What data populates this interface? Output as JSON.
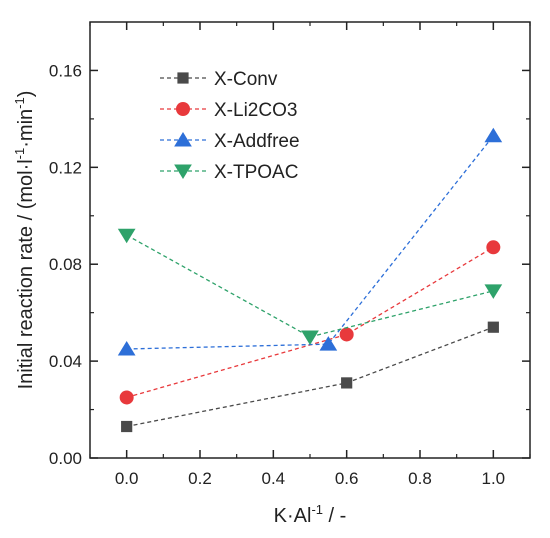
{
  "chart_data": {
    "type": "line",
    "xlabel_parts": [
      "K·Al",
      "-1",
      " / -"
    ],
    "ylabel_parts": [
      "Initial reaction rate / (mol·l",
      "-1",
      "·min",
      "-1",
      ")"
    ],
    "xlim": [
      -0.1,
      1.1
    ],
    "ylim": [
      0,
      0.18
    ],
    "xticks": [
      "0.0",
      "0.2",
      "0.4",
      "0.6",
      "0.8",
      "1.0"
    ],
    "yticks": [
      "0.00",
      "0.04",
      "0.08",
      "0.12",
      "0.16"
    ],
    "legend_position": "top-left",
    "series": [
      {
        "name": "X-Conv",
        "color": "#4a4a4a",
        "marker": "square",
        "x": [
          0.0,
          0.6,
          1.0
        ],
        "y": [
          0.013,
          0.031,
          0.054
        ]
      },
      {
        "name": "X-Li2CO3",
        "color": "#e8393c",
        "marker": "circle",
        "x": [
          0.0,
          0.6,
          1.0
        ],
        "y": [
          0.025,
          0.051,
          0.087
        ]
      },
      {
        "name": "X-Addfree",
        "color": "#2d6fd8",
        "marker": "triangle-up",
        "x": [
          0.0,
          0.55,
          1.0
        ],
        "y": [
          0.045,
          0.047,
          0.133
        ]
      },
      {
        "name": "X-TPOAC",
        "color": "#2ea26a",
        "marker": "triangle-down",
        "x": [
          0.0,
          0.5,
          1.0
        ],
        "y": [
          0.092,
          0.05,
          0.069
        ]
      }
    ]
  }
}
